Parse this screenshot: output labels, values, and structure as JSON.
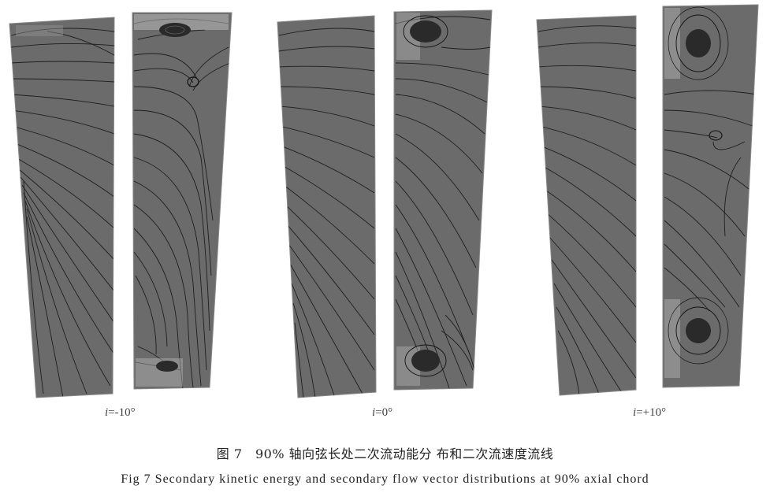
{
  "panels": [
    {
      "id": "neg10",
      "label_var": "i",
      "label_rest": "=-10°"
    },
    {
      "id": "zero",
      "label_var": "i",
      "label_rest": "=0°"
    },
    {
      "id": "pos10",
      "label_var": "i",
      "label_rest": "=+10°"
    }
  ],
  "caption_cn": "图 7　90% 轴向弦长处二次流动能分 布和二次流速度流线",
  "caption_en": "Fig 7   Secondary kinetic energy and secondary flow vector distributions at 90% axial chord",
  "colors": {
    "field": "#6b6b6b",
    "field_dark": "#555555",
    "streamline": "#1e1e1e",
    "highlight": "#b9b9b9",
    "vortex": "#2a2a2a"
  }
}
